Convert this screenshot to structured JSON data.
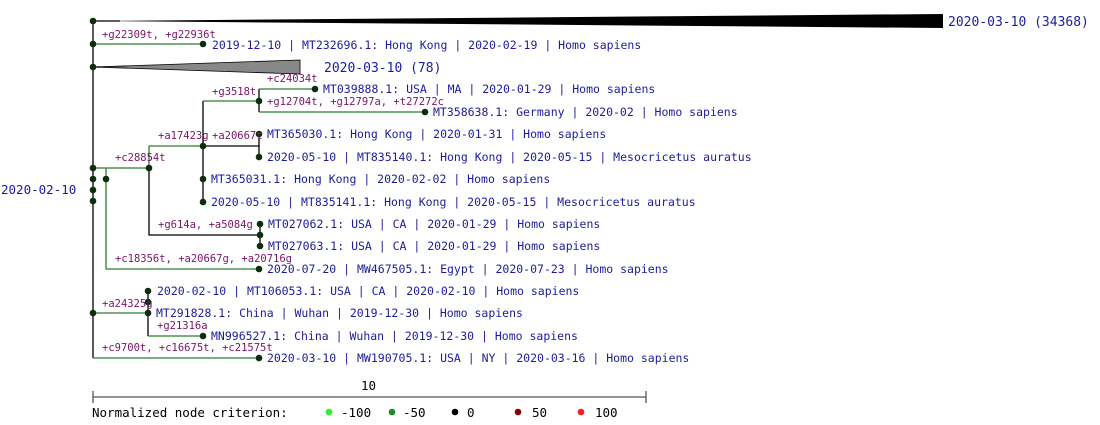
{
  "root_label": "2020-02-10",
  "collapsed": [
    {
      "label": "2020-03-10 (34368)"
    },
    {
      "label": "2020-03-10 (78)"
    }
  ],
  "leaves": [
    "2019-12-10 | MT232696.1: Hong Kong | 2020-02-19 | Homo sapiens",
    "MT039888.1: USA | MA | 2020-01-29 | Homo sapiens",
    "MT358638.1: Germany | 2020-02 | Homo sapiens",
    "MT365030.1: Hong Kong | 2020-01-31 | Homo sapiens",
    "2020-05-10 | MT835140.1: Hong Kong | 2020-05-15 | Mesocricetus auratus",
    "MT365031.1: Hong Kong | 2020-02-02 | Homo sapiens",
    "2020-05-10 | MT835141.1: Hong Kong | 2020-05-15 | Mesocricetus auratus",
    "MT027062.1: USA | CA | 2020-01-29 | Homo sapiens",
    "MT027063.1: USA | CA | 2020-01-29 | Homo sapiens",
    "2020-07-20 | MW467505.1: Egypt | 2020-07-23 | Homo sapiens",
    "2020-02-10 | MT106053.1: USA | CA | 2020-02-10 | Homo sapiens",
    "MT291828.1: China | Wuhan | 2019-12-30 | Homo sapiens",
    "MN996527.1: China | Wuhan | 2019-12-30 | Homo sapiens",
    "2020-03-10 | MW190705.1: USA | NY | 2020-03-16 | Homo sapiens"
  ],
  "mutations": [
    "+g22309t, +g22936t",
    "+c24034t",
    "+g3518t",
    "+g12704t, +g12797a, +t27272c",
    "+a17423g",
    "+a20667t",
    "+c28854t",
    "+g614a, +a5084g",
    "+c18356t, +a20667g, +a20716g",
    "+a24325g",
    "+g21316a",
    "+c9700t, +c16675t, +c21575t"
  ],
  "scale_bar": {
    "value": "10"
  },
  "legend": {
    "title": "Normalized node criterion:",
    "items": [
      {
        "label": "-100",
        "color": "#33ee33"
      },
      {
        "label": "-50",
        "color": "#1b8f1b"
      },
      {
        "label": "0",
        "color": "#000000"
      },
      {
        "label": "50",
        "color": "#8b0000"
      },
      {
        "label": "100",
        "color": "#ff1a1a"
      }
    ]
  },
  "colors": {
    "label": "#1c1c9c",
    "mutation": "#7a1464",
    "branch_green": "#2f7d2f",
    "branch_dark": "#000000",
    "node": "#0c2e0c"
  }
}
